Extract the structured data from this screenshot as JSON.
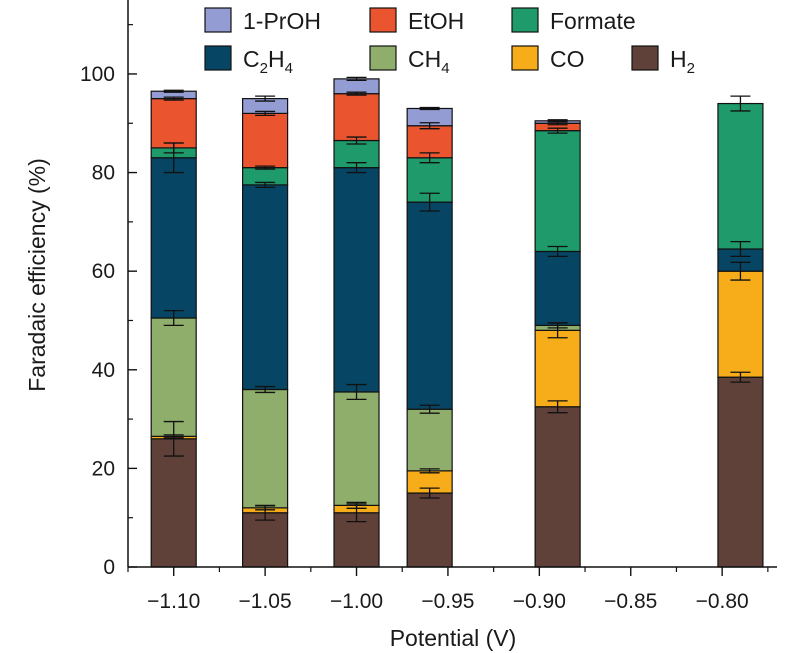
{
  "chart_data": {
    "type": "bar",
    "stacked": true,
    "xlabel": "Potential (V)",
    "ylabel": "Faradaic efficiency (%)",
    "xlim": [
      -1.125,
      -0.77
    ],
    "ylim": [
      0,
      115
    ],
    "x_ticks": [
      -1.1,
      -1.05,
      -1.0,
      -0.95,
      -0.9,
      -0.85,
      -0.8
    ],
    "x_tick_labels": [
      "−1.10",
      "−1.05",
      "−1.00",
      "−0.95",
      "−0.90",
      "−0.85",
      "−0.80"
    ],
    "y_ticks": [
      0,
      20,
      40,
      60,
      80,
      100
    ],
    "y_tick_labels": [
      "0",
      "20",
      "40",
      "60",
      "80",
      "100"
    ],
    "x": [
      -1.1,
      -1.05,
      -1.0,
      -0.96,
      -0.89,
      -0.79
    ],
    "series": [
      {
        "name": "H",
        "sub": "2",
        "color": "#5f4139",
        "values": [
          26.0,
          11.0,
          11.0,
          15.0,
          32.5,
          38.5
        ],
        "errors": [
          3.5,
          1.5,
          1.8,
          1.0,
          1.2,
          1.0
        ]
      },
      {
        "name": "CO",
        "sub": "",
        "color": "#f7ad19",
        "values": [
          0.5,
          1.0,
          1.5,
          4.5,
          15.5,
          21.5
        ],
        "errors": [
          0.3,
          0.4,
          0.6,
          0.4,
          1.5,
          1.8
        ]
      },
      {
        "name": "CH",
        "sub": "4",
        "color": "#8fae6c",
        "values": [
          24.0,
          24.0,
          23.0,
          12.5,
          1.0,
          0.0
        ],
        "errors": [
          1.5,
          0.6,
          1.5,
          0.8,
          0.5,
          0.0
        ]
      },
      {
        "name": "C",
        "sub": "2",
        "sub2": "H",
        "sub3": "4",
        "color": "#064563",
        "values": [
          32.5,
          41.5,
          45.5,
          42.0,
          15.0,
          4.5
        ],
        "errors": [
          3.0,
          0.5,
          1.0,
          1.8,
          1.0,
          1.5
        ]
      },
      {
        "name": "Formate",
        "sub": "",
        "color": "#1f9a6b",
        "values": [
          2.0,
          3.5,
          5.5,
          9.0,
          24.5,
          29.5
        ],
        "errors": [
          1.0,
          0.3,
          0.7,
          1.0,
          0.5,
          1.5
        ]
      },
      {
        "name": "EtOH",
        "sub": "",
        "color": "#ea5530",
        "values": [
          10.0,
          11.0,
          9.5,
          6.5,
          1.5,
          0.0
        ],
        "errors": [
          0.3,
          0.4,
          0.3,
          0.6,
          0.3,
          0.0
        ]
      },
      {
        "name": "1-PrOH",
        "sub": "",
        "color": "#939dd4",
        "values": [
          1.5,
          3.0,
          3.0,
          3.5,
          0.5,
          0.0
        ],
        "errors": [
          0.2,
          0.5,
          0.3,
          0.2,
          0.2,
          0.0
        ]
      }
    ],
    "legend_order": [
      "1-PrOH",
      "EtOH",
      "Formate",
      "C2H4",
      "CH4",
      "CO",
      "H2"
    ],
    "legend_placement": "top",
    "grid": false
  }
}
